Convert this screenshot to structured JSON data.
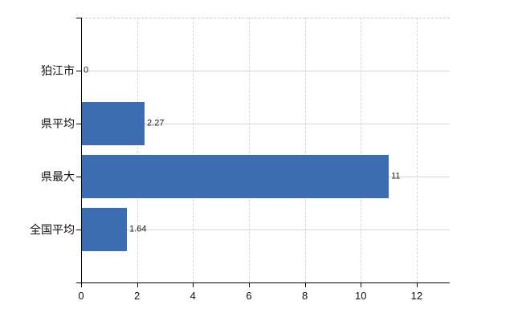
{
  "chart_data": {
    "type": "bar",
    "orientation": "horizontal",
    "title": "",
    "xlabel": "",
    "ylabel": "",
    "categories": [
      "狛江市",
      "県平均",
      "県最大",
      "全国平均"
    ],
    "values": [
      0,
      2.27,
      11,
      1.64
    ],
    "value_labels": [
      "0",
      "2.27",
      "11",
      "1.64"
    ],
    "xlim": [
      0,
      13.18
    ],
    "xticks": [
      0,
      2,
      4,
      6,
      8,
      10,
      12
    ],
    "legend_position": "none",
    "grid": {
      "horizontal_lines": "solid, at each category center",
      "vertical_lines": "dashed, at each x tick",
      "plot_top_border": "dashed"
    },
    "colors": {
      "bar": "#3c6db1",
      "horizontal_gridline": "#d3d8d3",
      "vertical_gridline": "#d5d1d6",
      "axis": "#000000",
      "text": "#111111",
      "background": "#ffffff"
    }
  }
}
